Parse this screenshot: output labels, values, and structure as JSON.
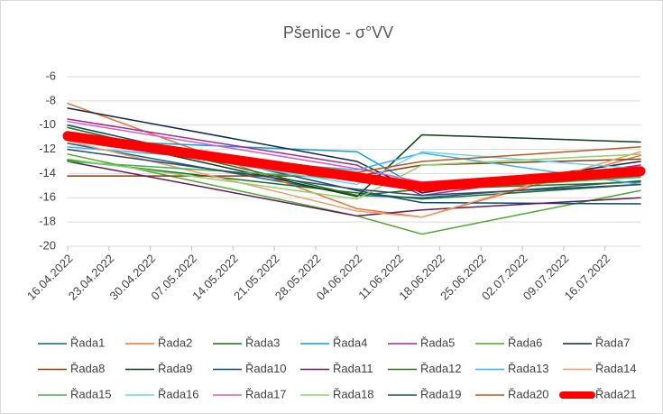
{
  "chart_data": {
    "type": "line",
    "title": "Pšenice - σ°VV",
    "x": [
      "16.04.2022",
      "04.06.2022",
      "15.06.2022",
      "22.07.2022"
    ],
    "xlim": [
      "16.04.2022",
      "22.07.2022"
    ],
    "xticks": [
      "16.04.2022",
      "23.04.2022",
      "30.04.2022",
      "07.05.2022",
      "14.05.2022",
      "21.05.2022",
      "28.05.2022",
      "04.06.2022",
      "11.06.2022",
      "18.06.2022",
      "25.06.2022",
      "02.07.2022",
      "09.07.2022",
      "16.07.2022"
    ],
    "ylim": [
      -20,
      -6
    ],
    "yticks": [
      -6,
      -8,
      -10,
      -12,
      -14,
      -16,
      -18,
      -20
    ],
    "grid": true,
    "series": [
      {
        "name": "Řada1",
        "color": "#156082",
        "values": [
          -11.5,
          -15.8,
          -16.0,
          -14.6
        ]
      },
      {
        "name": "Řada2",
        "color": "#e97132",
        "values": [
          -8.2,
          -16.9,
          -17.6,
          -12.5
        ]
      },
      {
        "name": "Řada3",
        "color": "#196b24",
        "values": [
          -12.9,
          -15.6,
          -16.1,
          -14.9
        ]
      },
      {
        "name": "Řada4",
        "color": "#0f9ed5",
        "values": [
          -11.2,
          -12.2,
          -15.3,
          -14.2
        ]
      },
      {
        "name": "Řada5",
        "color": "#a02b93",
        "values": [
          -9.5,
          -13.3,
          -15.8,
          -13.3
        ]
      },
      {
        "name": "Řada6",
        "color": "#4ea72e",
        "values": [
          -12.4,
          -17.5,
          -19.0,
          -15.4
        ]
      },
      {
        "name": "Řada7",
        "color": "#0e2841",
        "values": [
          -8.6,
          -13.0,
          -15.6,
          -13.0
        ]
      },
      {
        "name": "Řada8",
        "color": "#8a3b12",
        "values": [
          -14.2,
          -14.2,
          -13.3,
          -12.8
        ]
      },
      {
        "name": "Řada9",
        "color": "#0b3d16",
        "values": [
          -10.6,
          -15.9,
          -10.8,
          -11.4
        ]
      },
      {
        "name": "Řada10",
        "color": "#0b4a6a",
        "values": [
          -10.0,
          -15.4,
          -16.4,
          -16.5
        ]
      },
      {
        "name": "Řada11",
        "color": "#5f1a57",
        "values": [
          -13.0,
          -17.5,
          -17.0,
          -16.0
        ]
      },
      {
        "name": "Řada12",
        "color": "#2e6b1b",
        "values": [
          -10.2,
          -15.8,
          -15.3,
          -14.7
        ]
      },
      {
        "name": "Řada13",
        "color": "#3fb1e6",
        "values": [
          -11.8,
          -13.7,
          -12.3,
          -14.9
        ]
      },
      {
        "name": "Řada14",
        "color": "#f19c6b",
        "values": [
          -11.3,
          -17.1,
          -17.6,
          -12.2
        ]
      },
      {
        "name": "Řada15",
        "color": "#43b04a",
        "values": [
          -13.0,
          -14.5,
          -15.4,
          -14.3
        ]
      },
      {
        "name": "Řada16",
        "color": "#6ed0f0",
        "values": [
          -11.0,
          -14.9,
          -12.2,
          -13.6
        ]
      },
      {
        "name": "Řada17",
        "color": "#d35fc8",
        "values": [
          -9.7,
          -13.6,
          -14.7,
          -13.6
        ]
      },
      {
        "name": "Řada18",
        "color": "#8bd36a",
        "values": [
          -12.8,
          -16.1,
          -13.3,
          -12.4
        ]
      },
      {
        "name": "Řada19",
        "color": "#2e4a6a",
        "values": [
          -12.0,
          -15.3,
          -15.8,
          -14.9
        ]
      },
      {
        "name": "Řada20",
        "color": "#b85a1f",
        "values": [
          -10.8,
          -13.9,
          -13.0,
          -11.8
        ]
      },
      {
        "name": "Řada21",
        "color": "#ff0000",
        "values": [
          -10.9,
          -14.3,
          -15.1,
          -13.8
        ]
      }
    ]
  }
}
